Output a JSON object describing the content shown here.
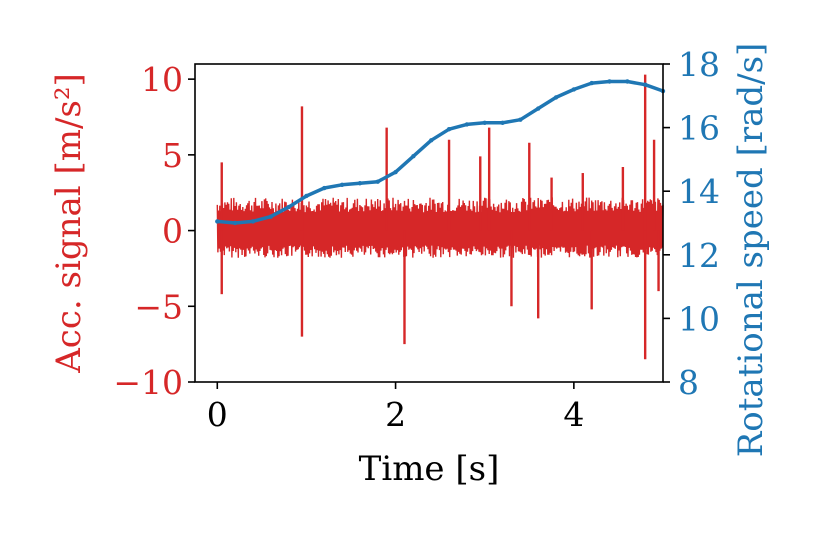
{
  "chart_data": {
    "type": "line",
    "xlabel": "Time [s]",
    "ylabel_left": "Acc. signal [m/s²]",
    "ylabel_right": "Rotational speed [rad/s]",
    "xlim": [
      -0.25,
      5.0
    ],
    "ylim_left": [
      -10,
      11
    ],
    "ylim_right": [
      8,
      18
    ],
    "x_ticks": [
      0,
      2,
      4
    ],
    "y_ticks_left": [
      10,
      5,
      0,
      -5,
      -10
    ],
    "y_ticks_right": [
      18,
      16,
      14,
      12,
      10,
      8
    ],
    "x_tick_labels": [
      "0",
      "2",
      "4"
    ],
    "y_tick_labels_left": [
      "10",
      "5",
      "0",
      "−5",
      "−10"
    ],
    "y_tick_labels_right": [
      "18",
      "16",
      "14",
      "12",
      "10",
      "8"
    ],
    "grid": false,
    "colors": {
      "acc": "#d62728",
      "speed": "#1f77b4"
    },
    "series": [
      {
        "axis": "left",
        "noise_band": [
          -1.8,
          2.2
        ],
        "x_range": [
          0,
          5.0
        ],
        "spikes": [
          {
            "x": 0.05,
            "y": 4.5
          },
          {
            "x": 0.05,
            "y": -4.2
          },
          {
            "x": 0.95,
            "y": 8.2
          },
          {
            "x": 0.95,
            "y": -7.0
          },
          {
            "x": 1.9,
            "y": 6.8
          },
          {
            "x": 2.1,
            "y": -7.5
          },
          {
            "x": 2.6,
            "y": 6.0
          },
          {
            "x": 2.95,
            "y": 4.9
          },
          {
            "x": 3.05,
            "y": 6.8
          },
          {
            "x": 3.3,
            "y": -5.0
          },
          {
            "x": 3.5,
            "y": 5.8
          },
          {
            "x": 3.6,
            "y": -5.8
          },
          {
            "x": 3.75,
            "y": 3.5
          },
          {
            "x": 4.1,
            "y": 3.8
          },
          {
            "x": 4.2,
            "y": -5.2
          },
          {
            "x": 4.55,
            "y": 4.2
          },
          {
            "x": 4.8,
            "y": 10.3
          },
          {
            "x": 4.8,
            "y": -8.5
          },
          {
            "x": 4.9,
            "y": 6.0
          },
          {
            "x": 4.95,
            "y": -4.0
          }
        ]
      },
      {
        "axis": "right",
        "x": [
          0,
          0.2,
          0.4,
          0.6,
          0.8,
          1.0,
          1.2,
          1.4,
          1.6,
          1.8,
          2.0,
          2.2,
          2.4,
          2.6,
          2.8,
          3.0,
          3.2,
          3.4,
          3.6,
          3.8,
          4.0,
          4.2,
          4.4,
          4.6,
          4.8,
          5.0
        ],
        "values": [
          13.05,
          13.0,
          13.05,
          13.2,
          13.5,
          13.85,
          14.1,
          14.2,
          14.25,
          14.3,
          14.6,
          15.1,
          15.6,
          15.95,
          16.1,
          16.15,
          16.15,
          16.25,
          16.6,
          16.95,
          17.2,
          17.4,
          17.45,
          17.45,
          17.35,
          17.15
        ]
      }
    ]
  }
}
